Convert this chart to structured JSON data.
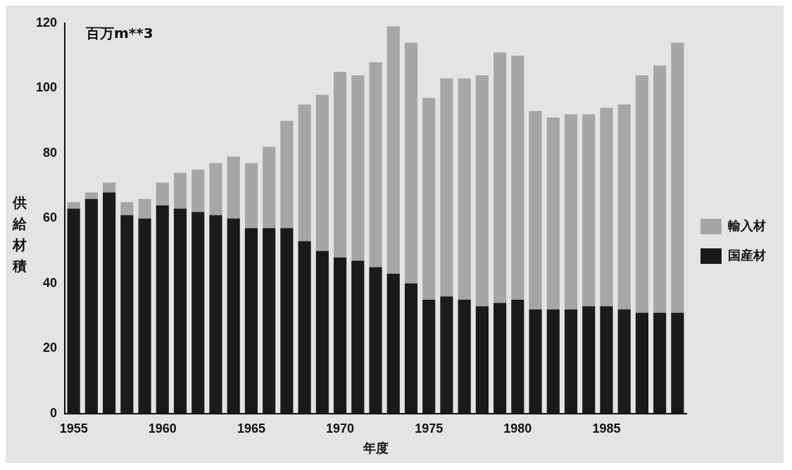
{
  "chart_data": {
    "type": "bar",
    "stacked": true,
    "xlabel": "年度",
    "ylabel": "供給材積",
    "annotations": [
      "百万m**3"
    ],
    "categories": [
      "1955",
      null,
      null,
      null,
      null,
      "1960",
      null,
      null,
      null,
      null,
      "1965",
      null,
      null,
      null,
      null,
      "1970",
      null,
      null,
      null,
      null,
      "1975",
      null,
      null,
      null,
      null,
      "1980",
      null,
      null,
      null,
      null,
      "1985",
      null,
      null,
      null,
      null
    ],
    "series": [
      {
        "name": "国産材",
        "color": "#1a1a1a",
        "values": [
          63,
          66,
          68,
          61,
          60,
          64,
          63,
          62,
          61,
          60,
          57,
          57,
          57,
          53,
          50,
          48,
          47,
          45,
          43,
          40,
          35,
          36,
          35,
          33,
          34,
          35,
          32,
          32,
          32,
          33,
          33,
          32,
          31,
          31,
          31
        ]
      },
      {
        "name": "輸入材",
        "color": "#a6a6a6",
        "values": [
          2,
          2,
          3,
          4,
          6,
          7,
          11,
          13,
          16,
          19,
          20,
          25,
          33,
          42,
          48,
          57,
          57,
          63,
          76,
          74,
          62,
          67,
          68,
          71,
          77,
          75,
          61,
          59,
          60,
          59,
          61,
          63,
          73,
          76,
          83
        ]
      }
    ],
    "ylim": [
      0,
      120
    ],
    "yticks": [
      0,
      20,
      40,
      60,
      80,
      100,
      120
    ],
    "grid": false,
    "legend": "right"
  }
}
